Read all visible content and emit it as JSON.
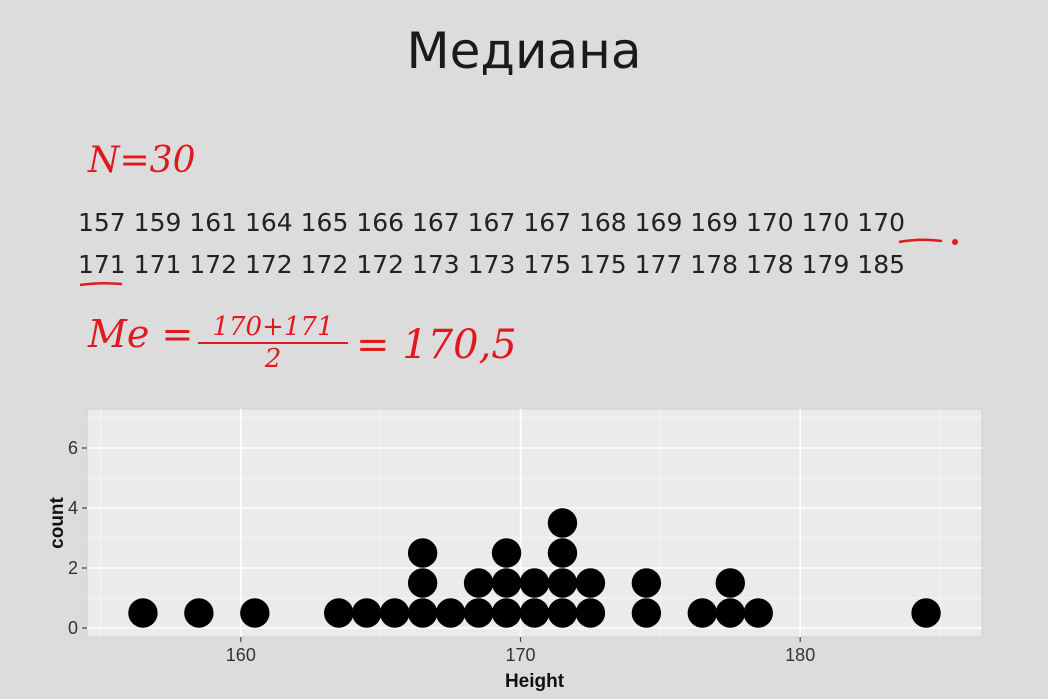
{
  "slide": {
    "title": "Медиана",
    "n_note": "N=30",
    "data_line1": "157 159 161 164 165 166 167 167 167 168 169 169 170 170 170",
    "data_line2": "171 171 172 172 172 172 173 173 175 175 177 178 178 179 185",
    "median_label": "Me =",
    "median_numerator": "170+171",
    "median_denominator": "2",
    "median_result": "= 170,5",
    "ink_color": "#e0191f"
  },
  "chart_data": {
    "type": "scatter",
    "subtype": "dotplot",
    "xlabel": "Height",
    "ylabel": "count",
    "xlim": [
      154.5,
      186.5
    ],
    "ylim": [
      -0.3,
      7.3
    ],
    "x_ticks": [
      160,
      170,
      180
    ],
    "y_ticks": [
      0,
      2,
      4,
      6
    ],
    "grid": true,
    "points": [
      {
        "x": 156.5,
        "y": 0.5
      },
      {
        "x": 158.5,
        "y": 0.5
      },
      {
        "x": 160.5,
        "y": 0.5
      },
      {
        "x": 163.5,
        "y": 0.5
      },
      {
        "x": 164.5,
        "y": 0.5
      },
      {
        "x": 165.5,
        "y": 0.5
      },
      {
        "x": 166.5,
        "y": 0.5
      },
      {
        "x": 166.5,
        "y": 1.5
      },
      {
        "x": 166.5,
        "y": 2.5
      },
      {
        "x": 167.5,
        "y": 0.5
      },
      {
        "x": 168.5,
        "y": 0.5
      },
      {
        "x": 168.5,
        "y": 1.5
      },
      {
        "x": 169.5,
        "y": 0.5
      },
      {
        "x": 169.5,
        "y": 1.5
      },
      {
        "x": 169.5,
        "y": 2.5
      },
      {
        "x": 170.5,
        "y": 0.5
      },
      {
        "x": 170.5,
        "y": 1.5
      },
      {
        "x": 171.5,
        "y": 0.5
      },
      {
        "x": 171.5,
        "y": 1.5
      },
      {
        "x": 171.5,
        "y": 2.5
      },
      {
        "x": 171.5,
        "y": 3.5
      },
      {
        "x": 172.5,
        "y": 0.5
      },
      {
        "x": 172.5,
        "y": 1.5
      },
      {
        "x": 174.5,
        "y": 0.5
      },
      {
        "x": 174.5,
        "y": 1.5
      },
      {
        "x": 176.5,
        "y": 0.5
      },
      {
        "x": 177.5,
        "y": 0.5
      },
      {
        "x": 177.5,
        "y": 1.5
      },
      {
        "x": 178.5,
        "y": 0.5
      },
      {
        "x": 184.5,
        "y": 0.5
      }
    ],
    "point_color": "#000000",
    "panel_color": "#ebebeb",
    "grid_color": "#ffffff"
  }
}
